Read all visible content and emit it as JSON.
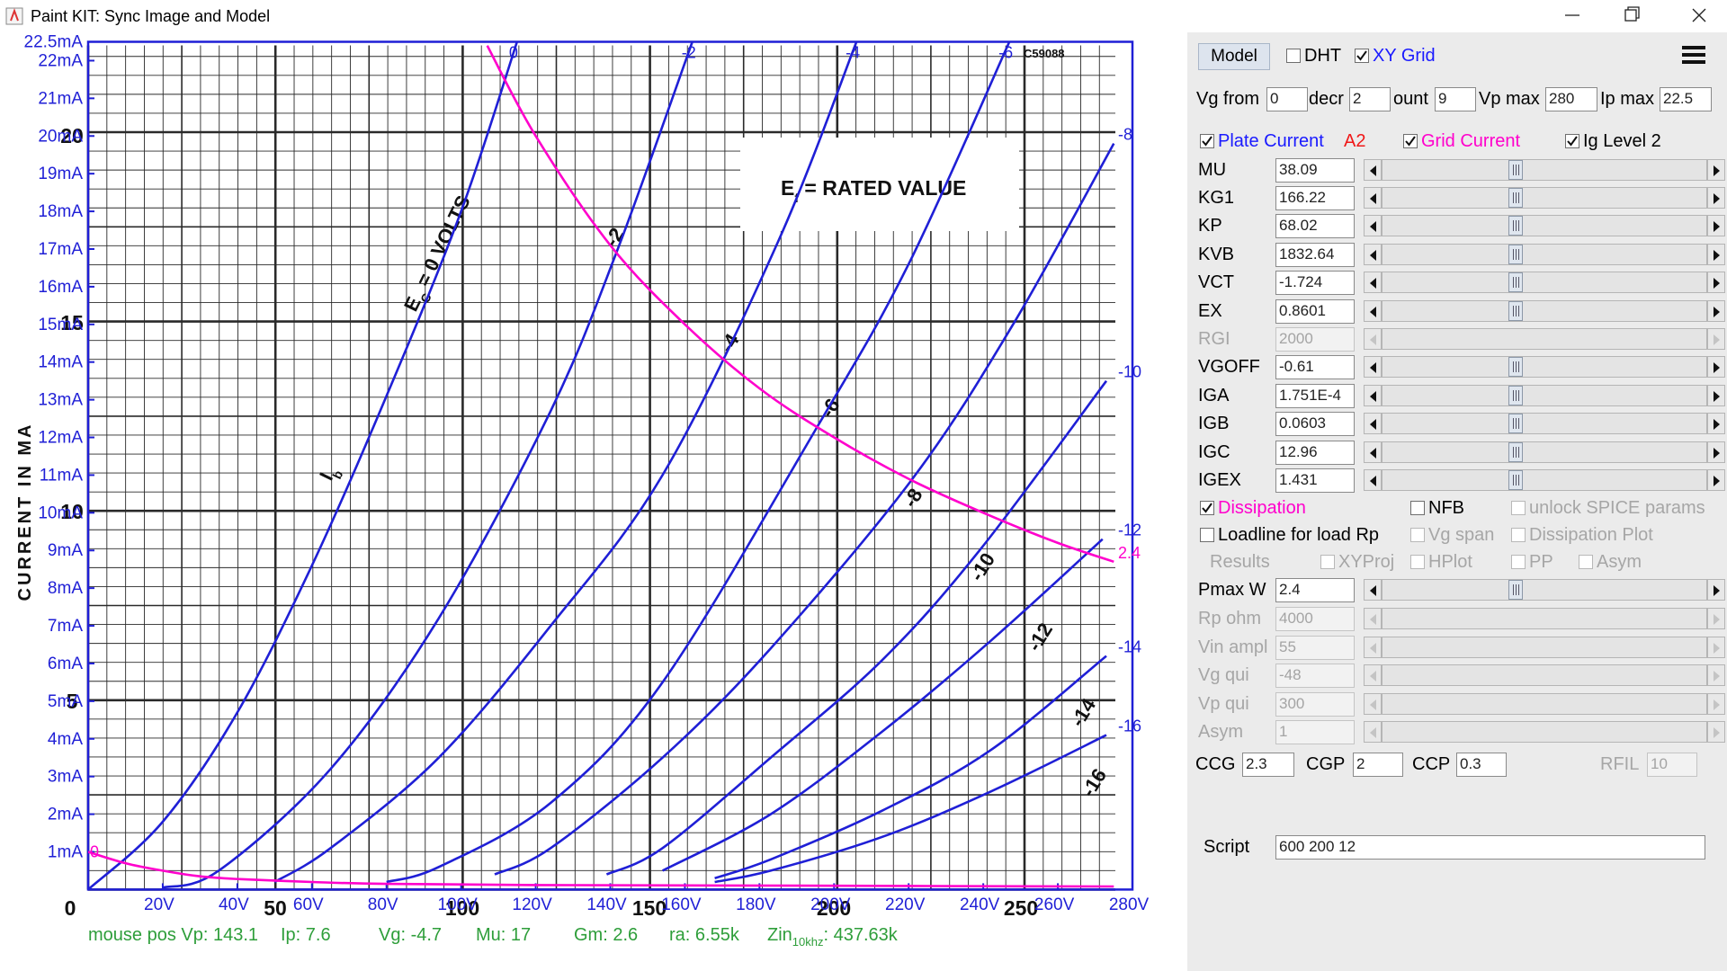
{
  "window": {
    "title": "Paint KIT: Sync Image and Model"
  },
  "chart_data": {
    "type": "line",
    "xlim": [
      0,
      280
    ],
    "ylim": [
      0,
      22.5
    ],
    "xticks": [
      {
        "value": 20,
        "label": "20V"
      },
      {
        "value": 40,
        "label": "40V"
      },
      {
        "value": 60,
        "label": "60V"
      },
      {
        "value": 80,
        "label": "80V"
      },
      {
        "value": 100,
        "label": "100V"
      },
      {
        "value": 120,
        "label": "120V"
      },
      {
        "value": 140,
        "label": "140V"
      },
      {
        "value": 160,
        "label": "160V"
      },
      {
        "value": 180,
        "label": "180V"
      },
      {
        "value": 200,
        "label": "200V"
      },
      {
        "value": 220,
        "label": "220V"
      },
      {
        "value": 240,
        "label": "240V"
      },
      {
        "value": 260,
        "label": "260V"
      },
      {
        "value": 280,
        "label": "280V"
      }
    ],
    "yticks": [
      {
        "value": 1,
        "label": "1mA"
      },
      {
        "value": 2,
        "label": "2mA"
      },
      {
        "value": 3,
        "label": "3mA"
      },
      {
        "value": 4,
        "label": "4mA"
      },
      {
        "value": 5,
        "label": "5mA"
      },
      {
        "value": 6,
        "label": "6mA"
      },
      {
        "value": 7,
        "label": "7mA"
      },
      {
        "value": 8,
        "label": "8mA"
      },
      {
        "value": 9,
        "label": "9mA"
      },
      {
        "value": 10,
        "label": "10mA"
      },
      {
        "value": 11,
        "label": "11mA"
      },
      {
        "value": 12,
        "label": "12mA"
      },
      {
        "value": 13,
        "label": "13mA"
      },
      {
        "value": 14,
        "label": "14mA"
      },
      {
        "value": 15,
        "label": "15mA"
      },
      {
        "value": 16,
        "label": "16mA"
      },
      {
        "value": 17,
        "label": "17mA"
      },
      {
        "value": 18,
        "label": "18mA"
      },
      {
        "value": 19,
        "label": "19mA"
      },
      {
        "value": 20,
        "label": "20mA"
      },
      {
        "value": 21,
        "label": "21mA"
      },
      {
        "value": 22,
        "label": "22mA"
      },
      {
        "value": 22.5,
        "label": "22.5mA"
      }
    ],
    "xy_grid": true,
    "series": [
      {
        "name": "0",
        "color": "#1f1fd6",
        "x": [
          0,
          20,
          40,
          60,
          80,
          100,
          115
        ],
        "values": [
          0,
          1.8,
          4.7,
          8.6,
          13.1,
          18.0,
          22.5
        ]
      },
      {
        "name": "-2",
        "color": "#1f1fd6",
        "x": [
          20,
          35,
          65,
          94,
          124,
          142,
          162
        ],
        "values": [
          0.05,
          0.5,
          3.2,
          7.2,
          12.7,
          17.0,
          22.5
        ]
      },
      {
        "name": "-4",
        "color": "#1f1fd6",
        "x": [
          50,
          65,
          94,
          124,
          154,
          185,
          206
        ],
        "values": [
          0.2,
          1.1,
          3.5,
          7.0,
          11.0,
          17.2,
          22.5
        ]
      },
      {
        "name": "-6",
        "color": "#1f1fd6",
        "x": [
          80,
          94,
          124,
          154,
          195,
          220,
          247
        ],
        "values": [
          0.2,
          0.6,
          2.3,
          5.5,
          12.2,
          16.6,
          22.5
        ]
      },
      {
        "name": "-8",
        "color": "#1f1fd6",
        "x": [
          109,
          124,
          154,
          183,
          221,
          248,
          275
        ],
        "values": [
          0.4,
          1.1,
          3.5,
          6.4,
          10.9,
          15.0,
          19.8
        ]
      },
      {
        "name": "-10",
        "color": "#1f1fd6",
        "x": [
          139,
          154,
          183,
          213,
          239,
          273
        ],
        "values": [
          0.4,
          1.1,
          3.5,
          6.1,
          9.0,
          13.5
        ]
      },
      {
        "name": "-12",
        "color": "#1f1fd6",
        "x": [
          154,
          183,
          213,
          242,
          272
        ],
        "values": [
          0.5,
          2.0,
          4.2,
          6.6,
          9.3
        ]
      },
      {
        "name": "-14",
        "color": "#1f1fd6",
        "x": [
          168,
          183,
          213,
          242,
          273
        ],
        "values": [
          0.3,
          0.8,
          2.1,
          3.7,
          6.2
        ]
      },
      {
        "name": "-16",
        "color": "#1f1fd6",
        "x": [
          168,
          183,
          213,
          242,
          273
        ],
        "values": [
          0.2,
          0.5,
          1.4,
          2.6,
          4.1
        ]
      },
      {
        "name": "2.4",
        "color": "#ff00cc",
        "x": [
          107,
          120,
          140,
          160,
          180,
          200,
          220,
          240,
          260,
          275
        ],
        "values": [
          22.4,
          20,
          17.1,
          15,
          13.3,
          12,
          10.9,
          10,
          9.2,
          8.7
        ]
      },
      {
        "name": "0",
        "color": "#ff00cc",
        "x": [
          0,
          10,
          20,
          30,
          40,
          60,
          80,
          120,
          200,
          275
        ],
        "values": [
          1.0,
          0.7,
          0.5,
          0.35,
          0.28,
          0.2,
          0.15,
          0.12,
          0.1,
          0.08
        ]
      }
    ]
  },
  "scan": {
    "y_title": "CURRENT IN MA",
    "ec": "E",
    "ec_sub": "C",
    "ec_rest": " = 0 VOLTS",
    "ef": "E",
    "ef_sub": "f",
    "ef_rest": " = RATED VALUE",
    "code": "C59088",
    "ib": "I",
    "ib_sub": "b",
    "x_labels": [
      "0",
      "50",
      "100",
      "150",
      "200",
      "250"
    ],
    "y_labels": [
      "5",
      "10",
      "15",
      "20"
    ],
    "curve_labels": [
      "-2",
      "-4",
      "-6",
      "-8",
      "-10",
      "-12",
      "-14",
      "-16"
    ]
  },
  "status": {
    "items": [
      "mouse pos Vp: 143.1",
      "Ip: 7.6",
      "Vg: -4.7",
      "Mu: 17",
      "Gm: 2.6",
      "ra: 6.55k"
    ],
    "zin": "Zin",
    "zin_sub": "10khz",
    "zin_value": ": 437.63k"
  },
  "panel": {
    "model_button": "Model",
    "top_fields": [
      {
        "label": "Vg from",
        "value": "0"
      },
      {
        "label": "decr",
        "value": "2"
      },
      {
        "label": "ount",
        "value": "9"
      },
      {
        "label": "Vp max",
        "value": "280"
      },
      {
        "label": "Ip max",
        "value": "22.5"
      }
    ],
    "a2": "A2",
    "checkboxes": [
      {
        "label": "DHT",
        "checked": false,
        "enabled": true
      },
      {
        "label": "XY Grid",
        "checked": true,
        "enabled": true,
        "color": "#1a1aff"
      },
      {
        "label": "Plate Current",
        "checked": true,
        "enabled": true,
        "color": "#1a1aff"
      },
      {
        "label": "Grid Current",
        "checked": true,
        "enabled": true,
        "color": "#ff00cc"
      },
      {
        "label": "Ig Level 2",
        "checked": true,
        "enabled": true
      },
      {
        "label": "Dissipation",
        "checked": true,
        "enabled": true,
        "color": "#ff00cc"
      },
      {
        "label": "NFB",
        "checked": false,
        "enabled": true
      },
      {
        "label": "unlock SPICE params",
        "checked": false,
        "enabled": false
      },
      {
        "label": "Loadline for load Rp",
        "checked": false,
        "enabled": true
      },
      {
        "label": "Vg span",
        "checked": false,
        "enabled": false
      },
      {
        "label": "Dissipation Plot",
        "checked": false,
        "enabled": false
      },
      {
        "label": "XYProj",
        "checked": false,
        "enabled": false
      },
      {
        "label": "HPlot",
        "checked": false,
        "enabled": false
      },
      {
        "label": "PP",
        "checked": false,
        "enabled": false
      },
      {
        "label": "Asym",
        "checked": false,
        "enabled": false
      }
    ],
    "results": "Results",
    "params": [
      {
        "label": "MU",
        "value": "38.09",
        "enabled": true
      },
      {
        "label": "KG1",
        "value": "166.22",
        "enabled": true
      },
      {
        "label": "KP",
        "value": "68.02",
        "enabled": true
      },
      {
        "label": "KVB",
        "value": "1832.64",
        "enabled": true
      },
      {
        "label": "VCT",
        "value": "-1.724",
        "enabled": true
      },
      {
        "label": "EX",
        "value": "0.8601",
        "enabled": true
      },
      {
        "label": "RGI",
        "value": "2000",
        "enabled": false
      },
      {
        "label": "VGOFF",
        "value": "-0.61",
        "enabled": true
      },
      {
        "label": "IGA",
        "value": "1.751E-4",
        "enabled": true
      },
      {
        "label": "IGB",
        "value": "0.0603",
        "enabled": true
      },
      {
        "label": "IGC",
        "value": "12.96",
        "enabled": true
      },
      {
        "label": "IGEX",
        "value": "1.431",
        "enabled": true
      }
    ],
    "load_params": [
      {
        "label": "Pmax W",
        "value": "2.4",
        "enabled": true
      },
      {
        "label": "Rp ohm",
        "value": "4000",
        "enabled": false
      },
      {
        "label": "Vin ampl",
        "value": "55",
        "enabled": false
      },
      {
        "label": "Vg qui",
        "value": "-48",
        "enabled": false
      },
      {
        "label": "Vp qui",
        "value": "300",
        "enabled": false
      },
      {
        "label": "Asym",
        "value": "1",
        "enabled": false
      }
    ],
    "caps": [
      {
        "label": "CCG",
        "value": "2.3",
        "enabled": true
      },
      {
        "label": "CGP",
        "value": "2",
        "enabled": true
      },
      {
        "label": "CCP",
        "value": "0.3",
        "enabled": true
      },
      {
        "label": "RFIL",
        "value": "10",
        "enabled": false
      }
    ],
    "script_label": "Script",
    "script_value": "600 200 12"
  }
}
